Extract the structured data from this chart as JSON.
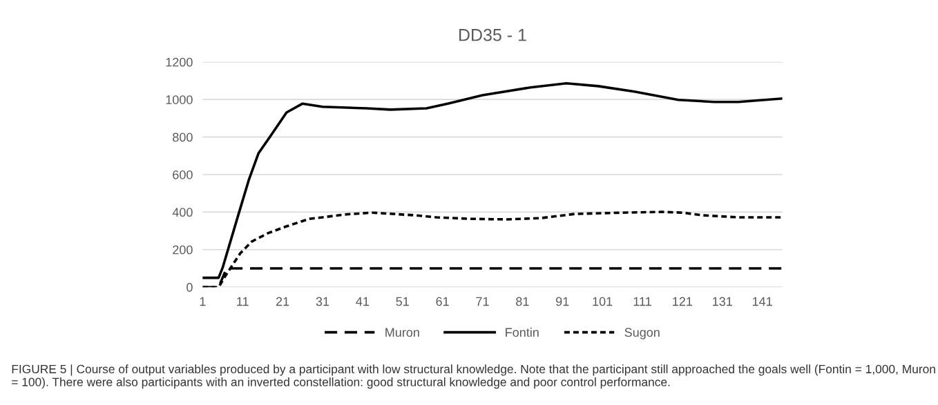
{
  "chart_data": {
    "type": "line",
    "title": "DD35 - 1",
    "xlim": [
      1,
      146
    ],
    "xticks": [
      1,
      11,
      21,
      31,
      41,
      51,
      61,
      71,
      81,
      91,
      101,
      111,
      121,
      131,
      141
    ],
    "ylim": [
      0,
      1200
    ],
    "yticks": [
      0,
      200,
      400,
      600,
      800,
      1000,
      1200
    ],
    "grid": "y",
    "legend": "bottom",
    "marker": "none",
    "series": [
      {
        "name": "Muron",
        "color": "#000000",
        "line_style": "dashed",
        "x": [
          1,
          5,
          7,
          146
        ],
        "values": [
          0,
          0,
          100,
          100
        ]
      },
      {
        "name": "Fontin",
        "color": "#000000",
        "line_style": "solid",
        "x": [
          1,
          5,
          6,
          10,
          12.6,
          15,
          18,
          22,
          26,
          31,
          42,
          48,
          57,
          62.5,
          71,
          83,
          92,
          100,
          109,
          120,
          129,
          135,
          146
        ],
        "values": [
          50,
          50,
          103,
          390,
          574,
          714,
          806,
          931,
          978,
          961,
          953,
          946,
          953,
          979,
          1023,
          1064,
          1086,
          1071,
          1042,
          998,
          987,
          987,
          1005
        ]
      },
      {
        "name": "Sugon",
        "color": "#000000",
        "line_style": "dotted",
        "x": [
          1,
          5,
          7,
          10.4,
          13.3,
          17.3,
          22,
          27.7,
          31,
          36.4,
          43.4,
          54,
          59.5,
          68,
          77,
          85.6,
          94,
          106,
          116,
          121,
          126,
          135,
          146
        ],
        "values": [
          0,
          0,
          70,
          180,
          243,
          287,
          324,
          364,
          372,
          387,
          397,
          383,
          372,
          364,
          361,
          368,
          390,
          397,
          401,
          397,
          383,
          372,
          372
        ]
      }
    ],
    "annotations": [
      "FIGURE 5 | Course of output variables produced by a participant with low structural knowledge. Note that the participant still approached the goals well (Fontin = 1,000, Muron = 100). There were also participants with an inverted constellation: good structural knowledge and poor control performance."
    ]
  }
}
